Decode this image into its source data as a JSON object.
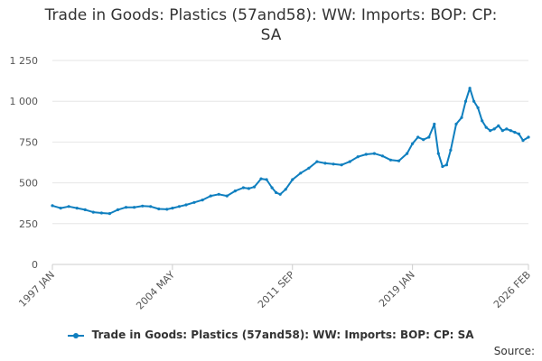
{
  "chart_data": {
    "type": "line",
    "title": "Trade in Goods: Plastics (57and58): WW: Imports: BOP: CP: SA",
    "title_lines": [
      "Trade in Goods: Plastics (57and58): WW: Imports: BOP: CP:",
      "SA"
    ],
    "xlabel": "",
    "ylabel": "",
    "ylim": [
      0,
      1250
    ],
    "y_ticks": [
      0,
      250,
      500,
      750,
      1000,
      1250
    ],
    "y_tick_labels": [
      "0",
      "250",
      "500",
      "750",
      "1 000",
      "1 250"
    ],
    "x_range": [
      "1997-01",
      "2026-02"
    ],
    "x_tick_labels": [
      "1997 JAN",
      "2004 MAY",
      "2011 SEP",
      "2019 JAN",
      "2026 FEB"
    ],
    "x_tick_dates": [
      "1997-01",
      "2004-05",
      "2011-09",
      "2019-01",
      "2026-02"
    ],
    "grid": true,
    "legend_position": "bottom",
    "series": [
      {
        "name": "Trade in Goods: Plastics (57and58): WW: Imports: BOP: CP: SA",
        "color": "#0f7fbf",
        "points": [
          [
            "1997-01",
            360
          ],
          [
            "1997-07",
            345
          ],
          [
            "1998-01",
            355
          ],
          [
            "1998-07",
            345
          ],
          [
            "1999-01",
            335
          ],
          [
            "1999-07",
            320
          ],
          [
            "2000-01",
            315
          ],
          [
            "2000-07",
            312
          ],
          [
            "2001-01",
            335
          ],
          [
            "2001-07",
            350
          ],
          [
            "2002-01",
            350
          ],
          [
            "2002-07",
            358
          ],
          [
            "2003-01",
            355
          ],
          [
            "2003-07",
            340
          ],
          [
            "2004-01",
            338
          ],
          [
            "2004-05",
            345
          ],
          [
            "2004-10",
            355
          ],
          [
            "2005-03",
            365
          ],
          [
            "2005-09",
            380
          ],
          [
            "2006-03",
            395
          ],
          [
            "2006-09",
            420
          ],
          [
            "2007-03",
            430
          ],
          [
            "2007-09",
            420
          ],
          [
            "2008-03",
            450
          ],
          [
            "2008-09",
            470
          ],
          [
            "2009-01",
            465
          ],
          [
            "2009-05",
            475
          ],
          [
            "2009-10",
            525
          ],
          [
            "2010-02",
            520
          ],
          [
            "2010-06",
            470
          ],
          [
            "2010-09",
            440
          ],
          [
            "2010-12",
            430
          ],
          [
            "2011-04",
            460
          ],
          [
            "2011-09",
            520
          ],
          [
            "2012-03",
            560
          ],
          [
            "2012-09",
            590
          ],
          [
            "2013-03",
            630
          ],
          [
            "2013-09",
            620
          ],
          [
            "2014-03",
            615
          ],
          [
            "2014-09",
            610
          ],
          [
            "2015-03",
            630
          ],
          [
            "2015-09",
            660
          ],
          [
            "2016-03",
            675
          ],
          [
            "2016-09",
            680
          ],
          [
            "2017-03",
            665
          ],
          [
            "2017-09",
            640
          ],
          [
            "2018-03",
            635
          ],
          [
            "2018-09",
            680
          ],
          [
            "2019-01",
            740
          ],
          [
            "2019-05",
            780
          ],
          [
            "2019-09",
            765
          ],
          [
            "2020-01",
            780
          ],
          [
            "2020-05",
            860
          ],
          [
            "2020-08",
            680
          ],
          [
            "2020-11",
            600
          ],
          [
            "2021-02",
            610
          ],
          [
            "2021-05",
            700
          ],
          [
            "2021-09",
            860
          ],
          [
            "2022-01",
            900
          ],
          [
            "2022-04",
            1000
          ],
          [
            "2022-07",
            1080
          ],
          [
            "2022-10",
            1000
          ],
          [
            "2023-01",
            960
          ],
          [
            "2023-04",
            880
          ],
          [
            "2023-07",
            840
          ],
          [
            "2023-10",
            820
          ],
          [
            "2024-01",
            830
          ],
          [
            "2024-04",
            850
          ],
          [
            "2024-07",
            820
          ],
          [
            "2024-10",
            830
          ],
          [
            "2025-01",
            820
          ],
          [
            "2025-04",
            810
          ],
          [
            "2025-07",
            800
          ],
          [
            "2025-10",
            760
          ],
          [
            "2026-02",
            780
          ]
        ]
      }
    ]
  },
  "legend": {
    "label": "Trade in Goods: Plastics (57and58): WW: Imports: BOP: CP: SA"
  },
  "source": {
    "label": "Source:"
  }
}
